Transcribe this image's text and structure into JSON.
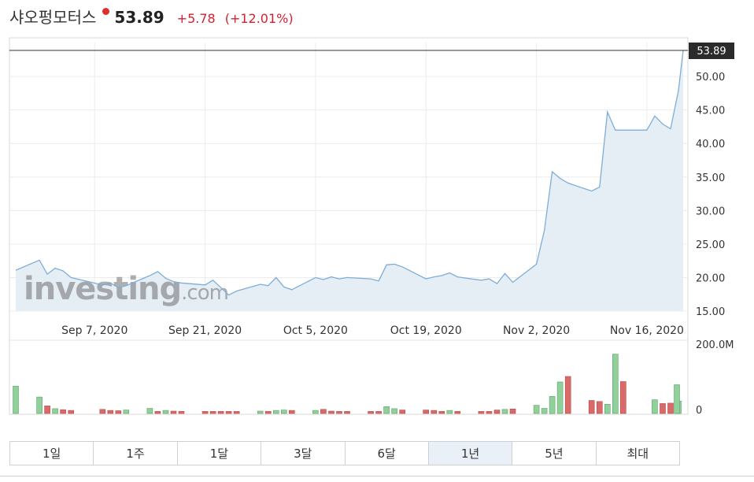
{
  "header": {
    "name": "샤오펑모터스",
    "price": "53.89",
    "change": "+5.78",
    "change_pct": "(+12.01%)",
    "change_color": "#d71e2e",
    "marker_color": "#e02e2e"
  },
  "watermark": {
    "text_main": "investing",
    "text_suffix": ".com"
  },
  "timeframes": [
    {
      "label": "1일",
      "active": false
    },
    {
      "label": "1주",
      "active": false
    },
    {
      "label": "1달",
      "active": false
    },
    {
      "label": "3달",
      "active": false
    },
    {
      "label": "6달",
      "active": false
    },
    {
      "label": "1년",
      "active": true
    },
    {
      "label": "5년",
      "active": false
    },
    {
      "label": "최대",
      "active": false
    }
  ],
  "chart_data": {
    "type": "area",
    "x_start_date": "2020-08-28",
    "x_end_date": "2020-11-20",
    "price_ylim": [
      15,
      53.89
    ],
    "y_ticks": [
      "15.00",
      "20.00",
      "25.00",
      "30.00",
      "35.00",
      "40.00",
      "45.00",
      "50.00"
    ],
    "last_price_label": "53.89",
    "x_ticks": [
      {
        "date": "2020-09-07",
        "label": "Sep 7, 2020"
      },
      {
        "date": "2020-09-21",
        "label": "Sep 21, 2020"
      },
      {
        "date": "2020-10-05",
        "label": "Oct 5, 2020"
      },
      {
        "date": "2020-10-19",
        "label": "Oct 19, 2020"
      },
      {
        "date": "2020-11-02",
        "label": "Nov 2, 2020"
      },
      {
        "date": "2020-11-16",
        "label": "Nov 16, 2020"
      }
    ],
    "prices": [
      {
        "date": "2020-08-28",
        "value": 21.1
      },
      {
        "date": "2020-08-31",
        "value": 22.6
      },
      {
        "date": "2020-09-01",
        "value": 20.5
      },
      {
        "date": "2020-09-02",
        "value": 21.4
      },
      {
        "date": "2020-09-03",
        "value": 21.0
      },
      {
        "date": "2020-09-04",
        "value": 20.0
      },
      {
        "date": "2020-09-08",
        "value": 18.9
      },
      {
        "date": "2020-09-09",
        "value": 19.2
      },
      {
        "date": "2020-09-10",
        "value": 18.5
      },
      {
        "date": "2020-09-11",
        "value": 18.8
      },
      {
        "date": "2020-09-14",
        "value": 20.3
      },
      {
        "date": "2020-09-15",
        "value": 20.9
      },
      {
        "date": "2020-09-16",
        "value": 19.9
      },
      {
        "date": "2020-09-17",
        "value": 19.4
      },
      {
        "date": "2020-09-18",
        "value": 19.2
      },
      {
        "date": "2020-09-21",
        "value": 18.9
      },
      {
        "date": "2020-09-22",
        "value": 19.6
      },
      {
        "date": "2020-09-23",
        "value": 18.5
      },
      {
        "date": "2020-09-24",
        "value": 17.4
      },
      {
        "date": "2020-09-25",
        "value": 18.0
      },
      {
        "date": "2020-09-28",
        "value": 19.0
      },
      {
        "date": "2020-09-29",
        "value": 18.8
      },
      {
        "date": "2020-09-30",
        "value": 20.0
      },
      {
        "date": "2020-10-01",
        "value": 18.6
      },
      {
        "date": "2020-10-02",
        "value": 18.2
      },
      {
        "date": "2020-10-05",
        "value": 20.0
      },
      {
        "date": "2020-10-06",
        "value": 19.7
      },
      {
        "date": "2020-10-07",
        "value": 20.1
      },
      {
        "date": "2020-10-08",
        "value": 19.8
      },
      {
        "date": "2020-10-09",
        "value": 20.0
      },
      {
        "date": "2020-10-12",
        "value": 19.8
      },
      {
        "date": "2020-10-13",
        "value": 19.5
      },
      {
        "date": "2020-10-14",
        "value": 21.9
      },
      {
        "date": "2020-10-15",
        "value": 22.0
      },
      {
        "date": "2020-10-16",
        "value": 21.6
      },
      {
        "date": "2020-10-19",
        "value": 19.8
      },
      {
        "date": "2020-10-20",
        "value": 20.1
      },
      {
        "date": "2020-10-21",
        "value": 20.3
      },
      {
        "date": "2020-10-22",
        "value": 20.7
      },
      {
        "date": "2020-10-23",
        "value": 20.1
      },
      {
        "date": "2020-10-26",
        "value": 19.6
      },
      {
        "date": "2020-10-27",
        "value": 19.8
      },
      {
        "date": "2020-10-28",
        "value": 19.1
      },
      {
        "date": "2020-10-29",
        "value": 20.6
      },
      {
        "date": "2020-10-30",
        "value": 19.3
      },
      {
        "date": "2020-11-02",
        "value": 22.0
      },
      {
        "date": "2020-11-03",
        "value": 27.0
      },
      {
        "date": "2020-11-04",
        "value": 35.8
      },
      {
        "date": "2020-11-05",
        "value": 34.8
      },
      {
        "date": "2020-11-06",
        "value": 34.1
      },
      {
        "date": "2020-11-09",
        "value": 32.9
      },
      {
        "date": "2020-11-10",
        "value": 33.5
      },
      {
        "date": "2020-11-11",
        "value": 44.7
      },
      {
        "date": "2020-11-12",
        "value": 42.0
      },
      {
        "date": "2020-11-13",
        "value": 42.0
      },
      {
        "date": "2020-11-16",
        "value": 42.0
      },
      {
        "date": "2020-11-17",
        "value": 44.1
      },
      {
        "date": "2020-11-18",
        "value": 42.9
      },
      {
        "date": "2020-11-19",
        "value": 42.2
      },
      {
        "date": "2020-11-20",
        "value": 47.9
      },
      {
        "date": "2020-11-20",
        "value": 53.89
      }
    ],
    "volume_ylim": [
      0,
      200
    ],
    "volume_tick_top": "200.0M",
    "volume_tick_zero": "0",
    "volume_unit": "M",
    "volumes": [
      {
        "date": "2020-08-28",
        "value": 80,
        "dir": "up"
      },
      {
        "date": "2020-08-31",
        "value": 48,
        "dir": "up"
      },
      {
        "date": "2020-09-01",
        "value": 22,
        "dir": "down"
      },
      {
        "date": "2020-09-02",
        "value": 14,
        "dir": "up"
      },
      {
        "date": "2020-09-03",
        "value": 11,
        "dir": "down"
      },
      {
        "date": "2020-09-04",
        "value": 9,
        "dir": "down"
      },
      {
        "date": "2020-09-08",
        "value": 12,
        "dir": "down"
      },
      {
        "date": "2020-09-09",
        "value": 9,
        "dir": "down"
      },
      {
        "date": "2020-09-10",
        "value": 8,
        "dir": "down"
      },
      {
        "date": "2020-09-11",
        "value": 10,
        "dir": "up"
      },
      {
        "date": "2020-09-14",
        "value": 15,
        "dir": "up"
      },
      {
        "date": "2020-09-15",
        "value": 6,
        "dir": "down"
      },
      {
        "date": "2020-09-16",
        "value": 9,
        "dir": "up"
      },
      {
        "date": "2020-09-17",
        "value": 7,
        "dir": "down"
      },
      {
        "date": "2020-09-18",
        "value": 6,
        "dir": "down"
      },
      {
        "date": "2020-09-21",
        "value": 6,
        "dir": "down"
      },
      {
        "date": "2020-09-22",
        "value": 6,
        "dir": "down"
      },
      {
        "date": "2020-09-23",
        "value": 6,
        "dir": "down"
      },
      {
        "date": "2020-09-24",
        "value": 6,
        "dir": "down"
      },
      {
        "date": "2020-09-25",
        "value": 6,
        "dir": "down"
      },
      {
        "date": "2020-09-28",
        "value": 7,
        "dir": "up"
      },
      {
        "date": "2020-09-29",
        "value": 6,
        "dir": "down"
      },
      {
        "date": "2020-09-30",
        "value": 9,
        "dir": "up"
      },
      {
        "date": "2020-10-01",
        "value": 10,
        "dir": "up"
      },
      {
        "date": "2020-10-02",
        "value": 9,
        "dir": "down"
      },
      {
        "date": "2020-10-05",
        "value": 9,
        "dir": "up"
      },
      {
        "date": "2020-10-06",
        "value": 12,
        "dir": "down"
      },
      {
        "date": "2020-10-07",
        "value": 7,
        "dir": "down"
      },
      {
        "date": "2020-10-08",
        "value": 6,
        "dir": "down"
      },
      {
        "date": "2020-10-09",
        "value": 6,
        "dir": "down"
      },
      {
        "date": "2020-10-12",
        "value": 6,
        "dir": "down"
      },
      {
        "date": "2020-10-13",
        "value": 6,
        "dir": "down"
      },
      {
        "date": "2020-10-14",
        "value": 20,
        "dir": "up"
      },
      {
        "date": "2020-10-15",
        "value": 14,
        "dir": "up"
      },
      {
        "date": "2020-10-16",
        "value": 10,
        "dir": "down"
      },
      {
        "date": "2020-10-19",
        "value": 10,
        "dir": "down"
      },
      {
        "date": "2020-10-20",
        "value": 9,
        "dir": "down"
      },
      {
        "date": "2020-10-21",
        "value": 6,
        "dir": "down"
      },
      {
        "date": "2020-10-22",
        "value": 9,
        "dir": "up"
      },
      {
        "date": "2020-10-23",
        "value": 6,
        "dir": "down"
      },
      {
        "date": "2020-10-26",
        "value": 6,
        "dir": "down"
      },
      {
        "date": "2020-10-27",
        "value": 6,
        "dir": "down"
      },
      {
        "date": "2020-10-28",
        "value": 10,
        "dir": "down"
      },
      {
        "date": "2020-10-29",
        "value": 12,
        "dir": "up"
      },
      {
        "date": "2020-10-30",
        "value": 13,
        "dir": "down"
      },
      {
        "date": "2020-11-02",
        "value": 24,
        "dir": "up"
      },
      {
        "date": "2020-11-03",
        "value": 15,
        "dir": "up"
      },
      {
        "date": "2020-11-04",
        "value": 50,
        "dir": "up"
      },
      {
        "date": "2020-11-05",
        "value": 92,
        "dir": "up"
      },
      {
        "date": "2020-11-06",
        "value": 108,
        "dir": "down"
      },
      {
        "date": "2020-11-09",
        "value": 38,
        "dir": "down"
      },
      {
        "date": "2020-11-10",
        "value": 35,
        "dir": "down"
      },
      {
        "date": "2020-11-11",
        "value": 27,
        "dir": "up"
      },
      {
        "date": "2020-11-12",
        "value": 173,
        "dir": "up"
      },
      {
        "date": "2020-11-13",
        "value": 93,
        "dir": "down"
      },
      {
        "date": "2020-11-16",
        "value": 0,
        "dir": "up"
      },
      {
        "date": "2020-11-17",
        "value": 40,
        "dir": "up"
      },
      {
        "date": "2020-11-18",
        "value": 29,
        "dir": "down"
      },
      {
        "date": "2020-11-19",
        "value": 30,
        "dir": "down"
      },
      {
        "date": "2020-11-20",
        "value": 36,
        "dir": "up"
      },
      {
        "date": "2020-11-20",
        "value": 84,
        "dir": "up"
      }
    ],
    "colors": {
      "line": "#7fadd6",
      "fill": "#e6eef5",
      "up": "#91cf9b",
      "up_stroke": "#5aa765",
      "down": "#d96a6a",
      "down_stroke": "#b94848",
      "last_tag": "#2b2b2b",
      "grid": "#ececec"
    },
    "grid": true
  }
}
